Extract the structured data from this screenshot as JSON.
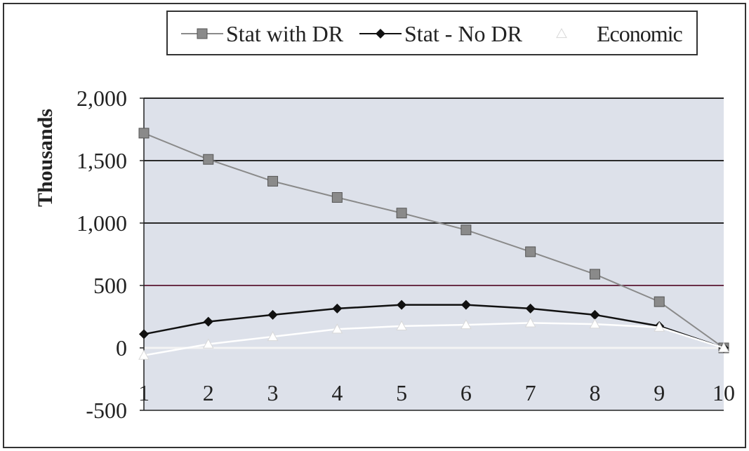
{
  "chart_data": {
    "type": "line",
    "title": "",
    "xlabel": "",
    "ylabel": "Thousands",
    "x": [
      1,
      2,
      3,
      4,
      5,
      6,
      7,
      8,
      9,
      10
    ],
    "x_tick_labels": [
      "1",
      "2",
      "3",
      "4",
      "5",
      "6",
      "7",
      "8",
      "9",
      "10"
    ],
    "ylim": [
      -500,
      2000
    ],
    "y_ticks": [
      -500,
      0,
      500,
      1000,
      1500,
      2000
    ],
    "y_tick_labels": [
      "-500",
      "0",
      "500",
      "1,000",
      "1,500",
      "2,000"
    ],
    "grid": "horizontal",
    "legend_position": "top",
    "series": [
      {
        "name": "Stat with DR",
        "marker": "square",
        "color": "#8a8a8a",
        "values": [
          1720,
          1510,
          1335,
          1205,
          1080,
          945,
          770,
          590,
          370,
          0
        ]
      },
      {
        "name": "Stat - No DR",
        "marker": "diamond",
        "color": "#111111",
        "values": [
          110,
          210,
          265,
          315,
          345,
          345,
          315,
          265,
          175,
          0
        ]
      },
      {
        "name": "Economic",
        "marker": "triangle",
        "color": "#ffffff",
        "values": [
          -60,
          30,
          90,
          150,
          175,
          185,
          200,
          190,
          165,
          0
        ]
      }
    ],
    "plot_background": "#dde1ea",
    "gridline_colors": {
      "500": "#6a2f48",
      "1000": "#2a2a2a",
      "1500": "#2a2a2a",
      "2000": "#2a2a2a"
    }
  }
}
